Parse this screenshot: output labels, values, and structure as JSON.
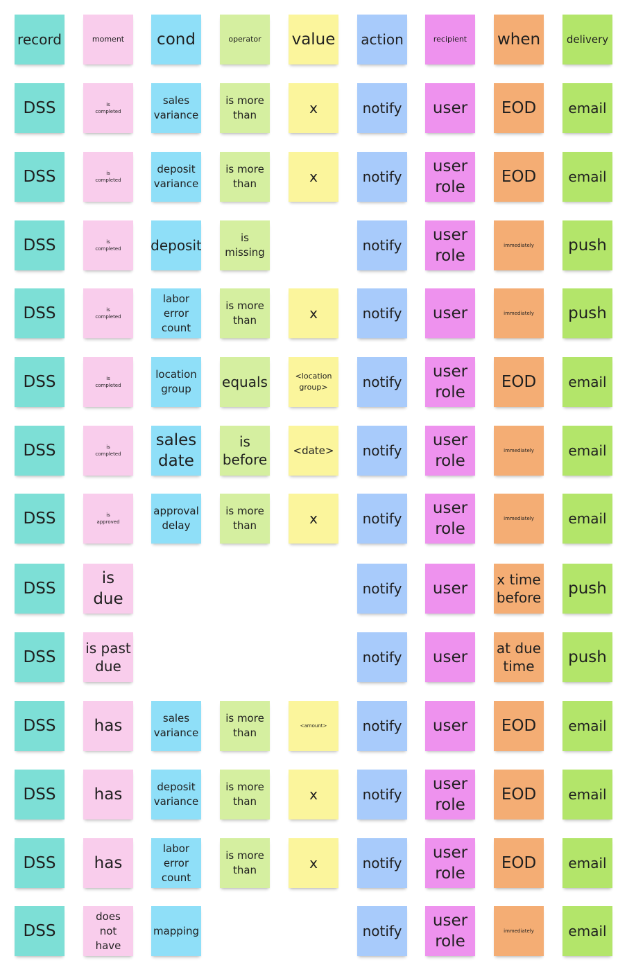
{
  "colors": {
    "record": "#7ddfd6",
    "moment": "#f9cdec",
    "cond": "#8fdff8",
    "operator": "#d5efa0",
    "value": "#fbf59c",
    "action": "#a8cbfb",
    "recipient": "#ee92ee",
    "when": "#f4ad74",
    "delivery": "#b3e56a"
  },
  "columns": [
    "record",
    "moment",
    "cond",
    "operator",
    "value",
    "action",
    "recipient",
    "when",
    "delivery"
  ],
  "header": {
    "record": "record",
    "moment": "moment",
    "cond": "cond",
    "operator": "operator",
    "value": "value",
    "action": "action",
    "recipient": "recipient",
    "when": "when",
    "delivery": "delivery"
  },
  "rows": [
    {
      "record": "DSS",
      "moment": "is completed",
      "cond": "sales variance",
      "operator": "is more than",
      "value": "x",
      "action": "notify",
      "recipient": "user",
      "when": "EOD",
      "delivery": "email"
    },
    {
      "record": "DSS",
      "moment": "is completed",
      "cond": "deposit variance",
      "operator": "is more than",
      "value": "x",
      "action": "notify",
      "recipient": "user role",
      "when": "EOD",
      "delivery": "email"
    },
    {
      "record": "DSS",
      "moment": "is completed",
      "cond": "deposit",
      "operator": "is missing",
      "value": "",
      "action": "notify",
      "recipient": "user role",
      "when": "immediately",
      "delivery": "push"
    },
    {
      "record": "DSS",
      "moment": "is completed",
      "cond": "labor error count",
      "operator": "is more than",
      "value": "x",
      "action": "notify",
      "recipient": "user",
      "when": "immediately",
      "delivery": "push"
    },
    {
      "record": "DSS",
      "moment": "is completed",
      "cond": "location group",
      "operator": "equals",
      "value": "<location group>",
      "action": "notify",
      "recipient": "user role",
      "when": "EOD",
      "delivery": "email"
    },
    {
      "record": "DSS",
      "moment": "is completed",
      "cond": "sales date",
      "operator": "is before",
      "value": "<date>",
      "action": "notify",
      "recipient": "user role",
      "when": "immediately",
      "delivery": "email"
    },
    {
      "record": "DSS",
      "moment": "is approved",
      "cond": "approval delay",
      "operator": "is more than",
      "value": "x",
      "action": "notify",
      "recipient": "user role",
      "when": "immediately",
      "delivery": "email"
    },
    {
      "record": "DSS",
      "moment": "is due",
      "cond": "",
      "operator": "",
      "value": "",
      "action": "notify",
      "recipient": "user",
      "when": "x time before",
      "delivery": "push"
    },
    {
      "record": "DSS",
      "moment": "is past due",
      "cond": "",
      "operator": "",
      "value": "",
      "action": "notify",
      "recipient": "user",
      "when": "at due time",
      "delivery": "push"
    },
    {
      "record": "DSS",
      "moment": "has",
      "cond": "sales variance",
      "operator": "is more than",
      "value": "<amount>",
      "action": "notify",
      "recipient": "user",
      "when": "EOD",
      "delivery": "email"
    },
    {
      "record": "DSS",
      "moment": "has",
      "cond": "deposit variance",
      "operator": "is more than",
      "value": "x",
      "action": "notify",
      "recipient": "user role",
      "when": "EOD",
      "delivery": "email"
    },
    {
      "record": "DSS",
      "moment": "has",
      "cond": "labor error count",
      "operator": "is more than",
      "value": "x",
      "action": "notify",
      "recipient": "user role",
      "when": "EOD",
      "delivery": "email"
    },
    {
      "record": "DSS",
      "moment": "does not have",
      "cond": "mapping",
      "operator": "",
      "value": "",
      "action": "notify",
      "recipient": "user role",
      "when": "immediately",
      "delivery": "email"
    }
  ]
}
